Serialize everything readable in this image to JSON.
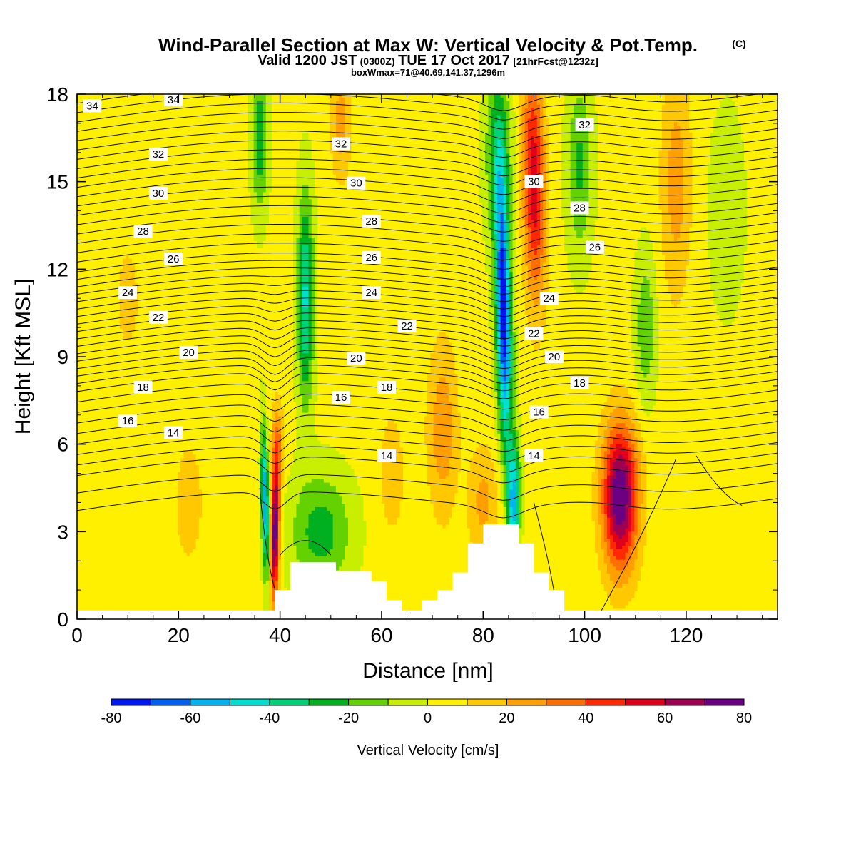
{
  "header": {
    "title": "Wind-Parallel Section at Max W: Vertical Velocity & Pot.Temp.",
    "copyright": "(C)",
    "valid_prefix": "Valid 1200 JST",
    "valid_utc": "(0300Z)",
    "valid_date": "TUE 17 Oct 2017",
    "forecast": "[21hrFcst@1232z]",
    "boxinfo": "boxWmax=71@40.69,141.37,1296m"
  },
  "chart_data": {
    "type": "heatmap",
    "xlabel": "Distance [nm]",
    "ylabel": "Height [Kft MSL]",
    "xlim": [
      0,
      138
    ],
    "ylim": [
      0,
      18
    ],
    "x_ticks": [
      "0",
      "20",
      "40",
      "60",
      "80",
      "100",
      "120"
    ],
    "y_ticks": [
      "0",
      "3",
      "6",
      "9",
      "12",
      "15",
      "18"
    ],
    "colorbar": {
      "label": "Vertical Velocity [cm/s]",
      "ticks": [
        "-80",
        "-60",
        "-40",
        "-20",
        "0",
        "20",
        "40",
        "60",
        "80"
      ],
      "bounds": [
        -80,
        80
      ],
      "colors": [
        "#0018f0",
        "#0060f0",
        "#00b4f0",
        "#00e0d0",
        "#00d27a",
        "#00b020",
        "#64d200",
        "#c8ee00",
        "#fff000",
        "#ffc800",
        "#ffa000",
        "#ff6e00",
        "#ff2800",
        "#e0001c",
        "#a00050",
        "#6a0082"
      ]
    },
    "terrain_kft": [
      [
        0,
        0.3
      ],
      [
        39,
        0.3
      ],
      [
        39,
        1.0
      ],
      [
        42,
        1.0
      ],
      [
        42,
        1.95
      ],
      [
        51,
        1.95
      ],
      [
        51,
        1.65
      ],
      [
        58,
        1.65
      ],
      [
        58,
        1.3
      ],
      [
        61,
        1.3
      ],
      [
        61,
        0.65
      ],
      [
        64,
        0.65
      ],
      [
        64,
        0.3
      ],
      [
        68,
        0.3
      ],
      [
        68,
        0.65
      ],
      [
        71,
        0.65
      ],
      [
        71,
        1.0
      ],
      [
        74,
        1.0
      ],
      [
        74,
        1.6
      ],
      [
        77,
        1.6
      ],
      [
        77,
        2.6
      ],
      [
        80,
        2.6
      ],
      [
        80,
        3.25
      ],
      [
        87,
        3.25
      ],
      [
        87,
        2.6
      ],
      [
        90,
        2.6
      ],
      [
        90,
        1.6
      ],
      [
        93,
        1.6
      ],
      [
        93,
        1.0
      ],
      [
        96,
        1.0
      ],
      [
        96,
        0.3
      ],
      [
        138,
        0.3
      ]
    ],
    "vv_cells": [
      {
        "x": 37,
        "y": 4,
        "w": -62,
        "wv": 0.7,
        "s": 2.5,
        "t": -0.1
      },
      {
        "x": 39,
        "y": 3,
        "w": 80,
        "wv": 0.9,
        "s": 2.3,
        "t": 0.08
      },
      {
        "x": 39.5,
        "y": 6,
        "w": 25,
        "wv": 1.2,
        "s": 1.5,
        "t": 0
      },
      {
        "x": 45,
        "y": 11,
        "w": -45,
        "wv": 1.6,
        "s": 3.5,
        "t": 0
      },
      {
        "x": 36,
        "y": 16.5,
        "w": -30,
        "wv": 1.6,
        "s": 2.5,
        "t": 0
      },
      {
        "x": 48,
        "y": 3,
        "w": -28,
        "wv": 6,
        "s": 2,
        "t": 0
      },
      {
        "x": 52,
        "y": 17,
        "w": 22,
        "wv": 2,
        "s": 2,
        "t": 0
      },
      {
        "x": 62,
        "y": 5,
        "w": 12,
        "wv": 3,
        "s": 2.5,
        "t": 0
      },
      {
        "x": 72,
        "y": 6.5,
        "w": 24,
        "wv": 3,
        "s": 3,
        "t": 0
      },
      {
        "x": 80,
        "y": 4,
        "w": 20,
        "wv": 3,
        "s": 2,
        "t": 0
      },
      {
        "x": 84,
        "y": 10.5,
        "w": -82,
        "wv": 1.5,
        "s": 4.5,
        "t": -0.12
      },
      {
        "x": 86,
        "y": 4,
        "w": -55,
        "wv": 1.2,
        "s": 2,
        "t": 0.05
      },
      {
        "x": 83,
        "y": 16,
        "w": -30,
        "wv": 2.5,
        "s": 3,
        "t": 0
      },
      {
        "x": 90,
        "y": 15,
        "w": 55,
        "wv": 2.2,
        "s": 4,
        "t": -0.1
      },
      {
        "x": 99,
        "y": 15.5,
        "w": -25,
        "wv": 2.5,
        "s": 3,
        "t": 0
      },
      {
        "x": 107,
        "y": 4.2,
        "w": 78,
        "wv": 3.5,
        "s": 2.5,
        "t": 0
      },
      {
        "x": 112,
        "y": 10,
        "w": -22,
        "wv": 2,
        "s": 2.5,
        "t": 0
      },
      {
        "x": 118,
        "y": 15,
        "w": 22,
        "wv": 3,
        "s": 4,
        "t": 0
      },
      {
        "x": 128,
        "y": 14,
        "w": -8,
        "wv": 4,
        "s": 4,
        "t": 0
      },
      {
        "x": 10,
        "y": 11,
        "w": 8,
        "wv": 5,
        "s": 4,
        "t": 0
      },
      {
        "x": 22,
        "y": 4,
        "w": 10,
        "wv": 4,
        "s": 3,
        "t": 0
      }
    ],
    "theta_labels": [
      {
        "v": "34",
        "x": 3,
        "y": 17.6
      },
      {
        "v": "34",
        "x": 19,
        "y": 17.8
      },
      {
        "v": "32",
        "x": 16,
        "y": 15.95
      },
      {
        "v": "32",
        "x": 52,
        "y": 16.3
      },
      {
        "v": "32",
        "x": 100,
        "y": 16.95
      },
      {
        "v": "30",
        "x": 16,
        "y": 14.6
      },
      {
        "v": "30",
        "x": 55,
        "y": 14.95
      },
      {
        "v": "30",
        "x": 90,
        "y": 15.0
      },
      {
        "v": "28",
        "x": 13,
        "y": 13.3
      },
      {
        "v": "28",
        "x": 58,
        "y": 13.65
      },
      {
        "v": "28",
        "x": 99,
        "y": 14.1
      },
      {
        "v": "26",
        "x": 19,
        "y": 12.35
      },
      {
        "v": "26",
        "x": 58,
        "y": 12.4
      },
      {
        "v": "26",
        "x": 102,
        "y": 12.75
      },
      {
        "v": "24",
        "x": 10,
        "y": 11.2
      },
      {
        "v": "24",
        "x": 58,
        "y": 11.2
      },
      {
        "v": "24",
        "x": 93,
        "y": 11.0
      },
      {
        "v": "22",
        "x": 16,
        "y": 10.35
      },
      {
        "v": "22",
        "x": 65,
        "y": 10.05
      },
      {
        "v": "22",
        "x": 90,
        "y": 9.8
      },
      {
        "v": "20",
        "x": 22,
        "y": 9.15
      },
      {
        "v": "20",
        "x": 55,
        "y": 8.95
      },
      {
        "v": "20",
        "x": 94,
        "y": 9.0
      },
      {
        "v": "18",
        "x": 13,
        "y": 7.95
      },
      {
        "v": "18",
        "x": 61,
        "y": 7.95
      },
      {
        "v": "18",
        "x": 99,
        "y": 8.1
      },
      {
        "v": "16",
        "x": 10,
        "y": 6.8
      },
      {
        "v": "16",
        "x": 52,
        "y": 7.6
      },
      {
        "v": "16",
        "x": 91,
        "y": 7.1
      },
      {
        "v": "14",
        "x": 19,
        "y": 6.4
      },
      {
        "v": "14",
        "x": 61,
        "y": 5.6
      },
      {
        "v": "14",
        "x": 90,
        "y": 5.6
      }
    ]
  }
}
